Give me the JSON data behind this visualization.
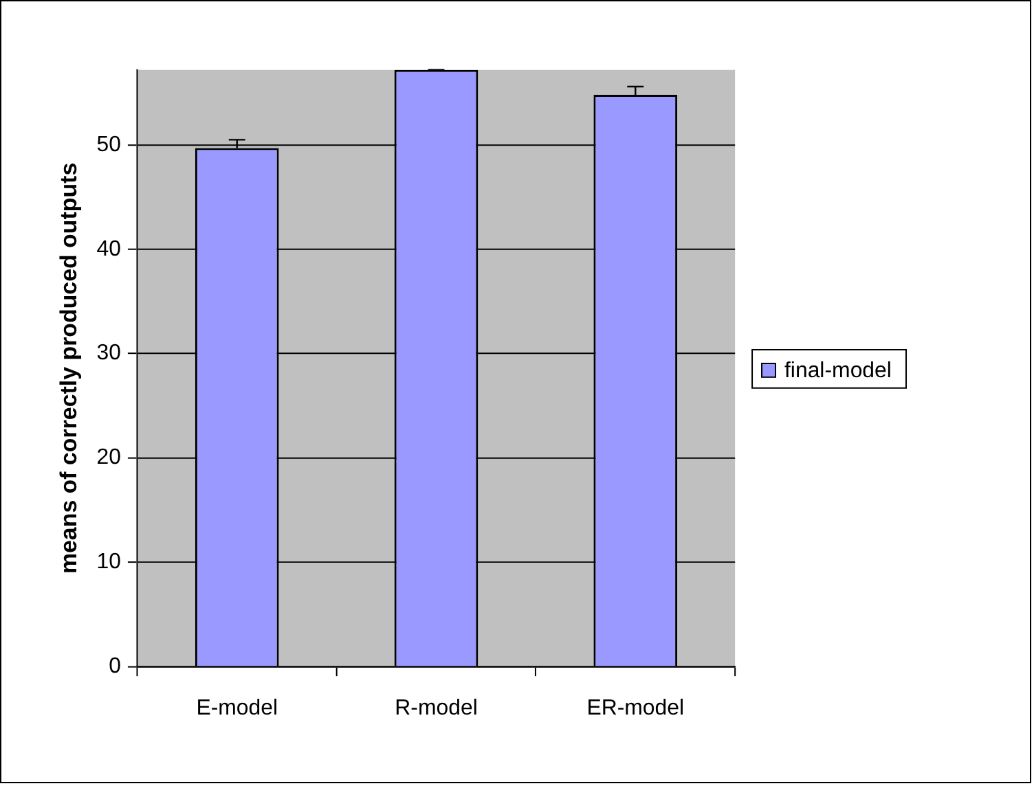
{
  "chart_data": {
    "type": "bar",
    "ylabel": "means of correctly produced outputs",
    "categories": [
      "E-model",
      "R-model",
      "ER-model"
    ],
    "series": [
      {
        "name": "final-model",
        "color": "#9999ff",
        "values": [
          49.7,
          57.2,
          54.8
        ],
        "errors": [
          [
            49.7,
            50.5
          ],
          [
            57.2,
            57.2
          ],
          [
            54.8,
            55.6
          ]
        ]
      }
    ],
    "ylim": [
      0,
      57.2
    ],
    "yticks": [
      0,
      10,
      20,
      30,
      40,
      50
    ],
    "grid": "y",
    "legend": "right"
  }
}
